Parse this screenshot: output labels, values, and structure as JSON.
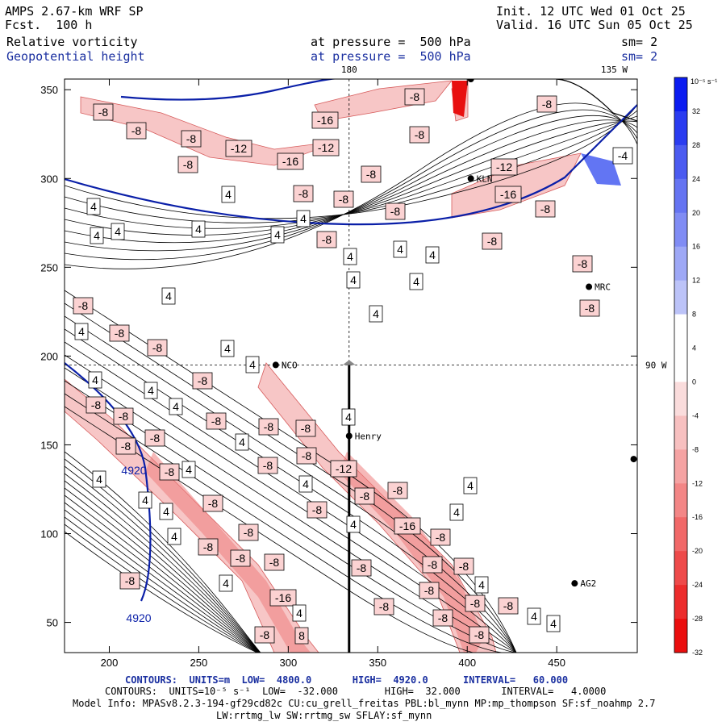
{
  "header": {
    "model": "AMPS 2.67-km WRF SP",
    "fcst": "Fcst.  100 h",
    "init": "Init. 12 UTC Wed 01 Oct 25",
    "valid": "Valid. 16 UTC Sun 05 Oct 25",
    "field1": "Relative vorticity",
    "field2": "Geopotential height",
    "level1": "at pressure =  500 hPa",
    "level2": "at pressure =  500 hPa",
    "sm1": "sm= 2",
    "sm2": "sm= 2"
  },
  "map": {
    "lon_label_top": "180",
    "lon_label_tr": "135 W",
    "lon_label_right": "90 W",
    "xlim": [
      175,
      495
    ],
    "ylim": [
      33,
      356
    ],
    "xticks": [
      200,
      250,
      300,
      350,
      400,
      450
    ],
    "yticks": [
      50,
      100,
      150,
      200,
      250,
      300,
      350
    ],
    "stations": [
      {
        "name": "NCO",
        "x": 293,
        "y": 195
      },
      {
        "name": "Henry",
        "x": 334,
        "y": 155
      },
      {
        "name": "KLN",
        "x": 402,
        "y": 300
      },
      {
        "name": "MRC",
        "x": 468,
        "y": 239
      },
      {
        "name": "AG2",
        "x": 460,
        "y": 72
      },
      {
        "name": "",
        "x": 493,
        "y": 142
      },
      {
        "name": "",
        "x": 402,
        "y": 356
      }
    ],
    "height_labels": [
      "4920",
      "4920"
    ],
    "vort_labels": [
      "4",
      "-4",
      "-8",
      "-12",
      "-16",
      "8"
    ]
  },
  "colorbar": {
    "units": "10⁻⁵ s⁻¹",
    "levels": [
      32,
      28,
      24,
      20,
      16,
      12,
      8,
      4,
      0,
      -4,
      -8,
      -12,
      -16,
      -20,
      -24,
      -28,
      -32
    ],
    "colors": [
      "#0b1cf0",
      "#2a3cf0",
      "#4b5bf0",
      "#6574f2",
      "#808cf4",
      "#9ea8f6",
      "#bcc3f8",
      "#ffffff",
      "#ffffff",
      "#fadcdc",
      "#f7c0c0",
      "#f5a3a3",
      "#f38686",
      "#f16868",
      "#ee4a4a",
      "#ec2c2c",
      "#ea0e0e"
    ]
  },
  "footer": {
    "line1": "CONTOURS:  UNITS=m  LOW=  4800.0       HIGH=  4920.0      INTERVAL=   60.000",
    "line2": "CONTOURS:  UNITS=10⁻⁵ s⁻¹  LOW=  -32.000        HIGH=  32.000       INTERVAL=   4.0000",
    "line3": "Model Info: MPASv8.2.3-194-gf29cd82c CU:cu_grell_freitas PBL:bl_mynn MP:mp_thompson SF:sf_noahmp 2.7",
    "line4": "LW:rrtmg_lw SW:rrtmg_sw SFLAY:sf_mynn"
  }
}
